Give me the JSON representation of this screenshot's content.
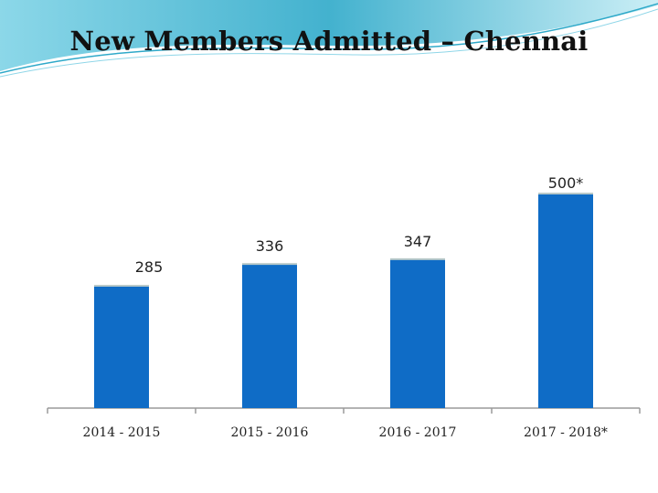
{
  "slide": {
    "title": "New Members Admitted – Chennai",
    "accent_color": "#2ea9c9",
    "bar_color": "#0f6cc6"
  },
  "chart_data": {
    "type": "bar",
    "title": "",
    "xlabel": "",
    "ylabel": "",
    "categories": [
      "2014 - 2015",
      "2015 - 2016",
      "2016 - 2017",
      "2017 - 2018*"
    ],
    "values": [
      285,
      336,
      347,
      500
    ],
    "data_labels": [
      "285",
      "336",
      "347",
      "500*"
    ],
    "ylim": [
      0,
      500
    ],
    "grid": false,
    "legend": "none"
  }
}
